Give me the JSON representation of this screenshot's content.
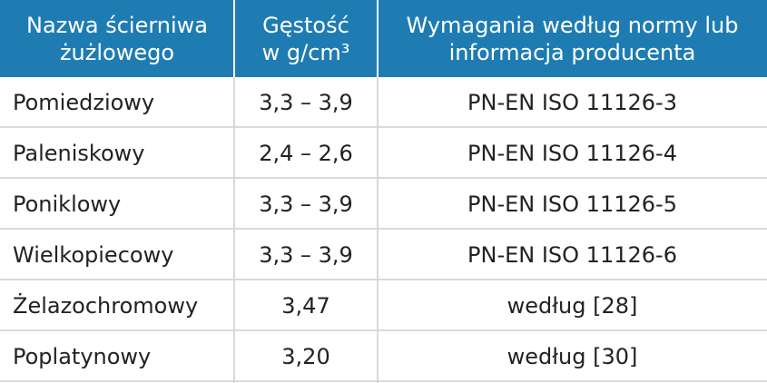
{
  "header": {
    "col1_line1": "Nazwa ścierniwa",
    "col1_line2": "żużlowego",
    "col2_line1": "Gęstość",
    "col2_line2": "w g/cm³",
    "col3_line1": "Wymagania według normy lub",
    "col3_line2": "informacja producenta"
  },
  "rows": [
    {
      "name": "Pomiedziowy",
      "density": "3,3 – 3,9",
      "requirement": "PN-EN ISO 11126-3"
    },
    {
      "name": "Paleniskowy",
      "density": "2,4 – 2,6",
      "requirement": "PN-EN ISO 11126-4"
    },
    {
      "name": "Poniklowy",
      "density": "3,3 – 3,9",
      "requirement": "PN-EN ISO 11126-5"
    },
    {
      "name": "Wielkopiecowy",
      "density": "3,3 – 3,9",
      "requirement": "PN-EN ISO 11126-6"
    },
    {
      "name": "Żelazochromowy",
      "density": "3,47",
      "requirement": "według [28]"
    },
    {
      "name": "Poplatynowy",
      "density": "3,20",
      "requirement": "według [30]"
    }
  ],
  "colors": {
    "header_background": "#1e7cb3",
    "header_text": "#ffffff",
    "body_text": "#222222",
    "grid_lines": "#d9d9d9"
  }
}
